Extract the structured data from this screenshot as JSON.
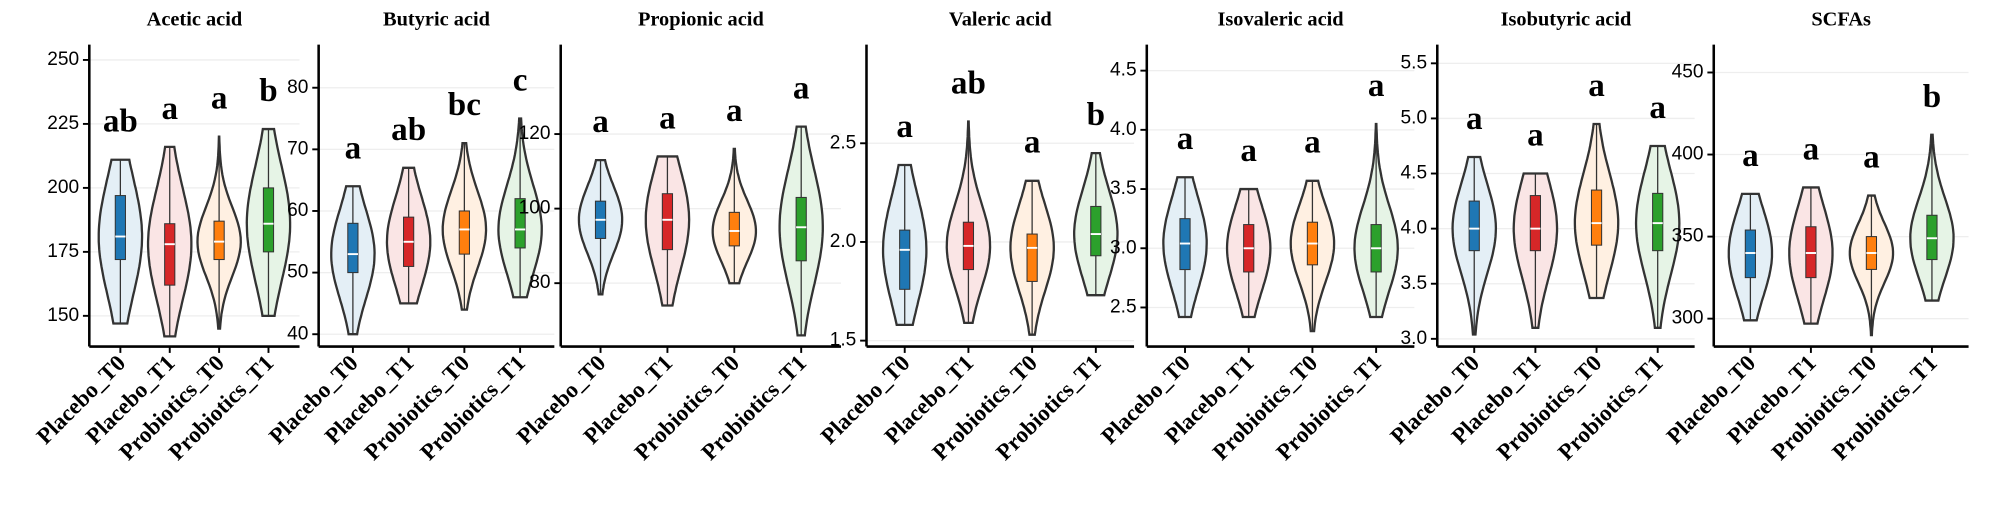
{
  "chart_data": [
    {
      "type": "violin",
      "title": "Acetic acid",
      "categories": [
        "Placebo_T0",
        "Placebo_T1",
        "Probiotics_T0",
        "Probiotics_T1"
      ],
      "colors": [
        "#1f77b4",
        "#d62728",
        "#ff7f0e",
        "#2ca02c"
      ],
      "min": [
        147,
        142,
        145,
        150
      ],
      "q1": [
        172,
        162,
        172,
        175
      ],
      "median": [
        181,
        178,
        179,
        186
      ],
      "q3": [
        197,
        186,
        187,
        200
      ],
      "max": [
        211,
        216,
        220,
        223
      ],
      "letters": [
        "ab",
        "a",
        "a",
        "b"
      ],
      "ylim": [
        138,
        256
      ],
      "yticks": [
        150,
        175,
        200,
        225,
        250
      ]
    },
    {
      "type": "violin",
      "title": "Butyric acid",
      "categories": [
        "Placebo_T0",
        "Placebo_T1",
        "Probiotics_T0",
        "Probiotics_T1"
      ],
      "colors": [
        "#1f77b4",
        "#d62728",
        "#ff7f0e",
        "#2ca02c"
      ],
      "min": [
        40,
        45,
        44,
        46
      ],
      "q1": [
        50,
        51,
        53,
        54
      ],
      "median": [
        53,
        55,
        57,
        57
      ],
      "q3": [
        58,
        59,
        60,
        62
      ],
      "max": [
        64,
        67,
        71,
        75
      ],
      "letters": [
        "a",
        "ab",
        "bc",
        "c"
      ],
      "ylim": [
        38,
        87
      ],
      "yticks": [
        40,
        50,
        60,
        70,
        80
      ]
    },
    {
      "type": "violin",
      "title": "Propionic acid",
      "categories": [
        "Placebo_T0",
        "Placebo_T1",
        "Probiotics_T0",
        "Probiotics_T1"
      ],
      "colors": [
        "#1f77b4",
        "#d62728",
        "#ff7f0e",
        "#2ca02c"
      ],
      "min": [
        77,
        74,
        80,
        66
      ],
      "q1": [
        92,
        89,
        90,
        86
      ],
      "median": [
        97,
        97,
        94,
        95
      ],
      "q3": [
        102,
        104,
        99,
        103
      ],
      "max": [
        113,
        114,
        116,
        122
      ],
      "letters": [
        "a",
        "a",
        "a",
        "a"
      ],
      "ylim": [
        63,
        144
      ],
      "yticks": [
        80,
        100,
        120
      ]
    },
    {
      "type": "violin",
      "title": "Valeric acid",
      "categories": [
        "Placebo_T0",
        "Placebo_T1",
        "Probiotics_T0",
        "Probiotics_T1"
      ],
      "colors": [
        "#1f77b4",
        "#d62728",
        "#ff7f0e",
        "#2ca02c"
      ],
      "min": [
        1.58,
        1.59,
        1.53,
        1.73
      ],
      "q1": [
        1.76,
        1.86,
        1.8,
        1.93
      ],
      "median": [
        1.96,
        1.98,
        1.97,
        2.04
      ],
      "q3": [
        2.06,
        2.1,
        2.04,
        2.18
      ],
      "max": [
        2.39,
        2.61,
        2.31,
        2.45
      ],
      "letters": [
        "a",
        "ab",
        "a",
        "b"
      ],
      "ylim": [
        1.47,
        3.0
      ],
      "yticks": [
        1.5,
        {
          "value": 2,
          "label": "2.0"
        },
        2.5
      ]
    },
    {
      "type": "violin",
      "title": "Isovaleric acid",
      "categories": [
        "Placebo_T0",
        "Placebo_T1",
        "Probiotics_T0",
        "Probiotics_T1"
      ],
      "colors": [
        "#1f77b4",
        "#d62728",
        "#ff7f0e",
        "#2ca02c"
      ],
      "min": [
        2.42,
        2.42,
        2.3,
        2.42
      ],
      "q1": [
        2.82,
        2.8,
        2.86,
        2.8
      ],
      "median": [
        3.04,
        3.0,
        3.04,
        3.0
      ],
      "q3": [
        3.25,
        3.2,
        3.22,
        3.2
      ],
      "max": [
        3.6,
        3.5,
        3.57,
        4.05
      ],
      "letters": [
        "a",
        "a",
        "a",
        "a"
      ],
      "ylim": [
        2.17,
        4.72
      ],
      "yticks": [
        2.5,
        {
          "value": 3,
          "label": "3.0"
        },
        3.5,
        {
          "value": 4,
          "label": "4.0"
        },
        4.5
      ]
    },
    {
      "type": "violin",
      "title": "Isobutyric acid",
      "categories": [
        "Placebo_T0",
        "Placebo_T1",
        "Probiotics_T0",
        "Probiotics_T1"
      ],
      "colors": [
        "#1f77b4",
        "#d62728",
        "#ff7f0e",
        "#2ca02c"
      ],
      "min": [
        3.04,
        3.1,
        3.37,
        3.1
      ],
      "q1": [
        3.8,
        3.8,
        3.85,
        3.8
      ],
      "median": [
        4.0,
        4.0,
        4.05,
        4.05
      ],
      "q3": [
        4.25,
        4.3,
        4.35,
        4.32
      ],
      "max": [
        4.65,
        4.5,
        4.95,
        4.75
      ],
      "letters": [
        "a",
        "a",
        "a",
        "a"
      ],
      "ylim": [
        2.93,
        5.67
      ],
      "yticks": [
        {
          "value": 3,
          "label": "3.0"
        },
        3.5,
        {
          "value": 4,
          "label": "4.0"
        },
        4.5,
        {
          "value": 5,
          "label": "5.0"
        },
        5.5
      ]
    },
    {
      "type": "violin",
      "title": "SCFAs",
      "categories": [
        "Placebo_T0",
        "Placebo_T1",
        "Probiotics_T0",
        "Probiotics_T1"
      ],
      "colors": [
        "#1f77b4",
        "#d62728",
        "#ff7f0e",
        "#2ca02c"
      ],
      "min": [
        299,
        297,
        290,
        311
      ],
      "q1": [
        325,
        325,
        330,
        336
      ],
      "median": [
        340,
        340,
        340,
        349
      ],
      "q3": [
        354,
        356,
        350,
        363
      ],
      "max": [
        376,
        380,
        375,
        412
      ],
      "letters": [
        "a",
        "a",
        "a",
        "b"
      ],
      "ylim": [
        283,
        467
      ],
      "yticks": [
        300,
        350,
        400,
        450
      ]
    }
  ]
}
